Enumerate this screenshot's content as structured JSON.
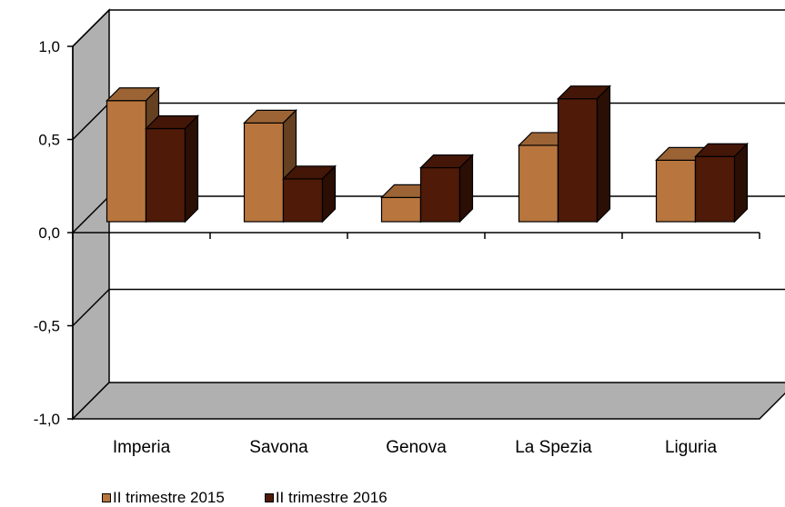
{
  "chart_data": {
    "type": "bar",
    "title": "",
    "xlabel": "",
    "ylabel": "",
    "categories": [
      "Imperia",
      "Savona",
      "Genova",
      "La Spezia",
      "Liguria"
    ],
    "series": [
      {
        "name": "II trimestre 2015",
        "values": [
          0.65,
          0.53,
          0.13,
          0.41,
          0.33
        ]
      },
      {
        "name": "II trimestre 2016",
        "values": [
          0.5,
          0.23,
          0.29,
          0.66,
          0.35
        ]
      }
    ],
    "ylim": [
      -1.0,
      1.0
    ],
    "yticks": [
      "1,0",
      "0,5",
      "0,0",
      "-0,5",
      "-1,0"
    ],
    "grid": true,
    "legend_position": "bottom-left",
    "colors": {
      "series_0": "#B8763E",
      "series_1": "#4F1A08",
      "wall": "#B0B0B0"
    }
  },
  "legend": {
    "items": [
      {
        "label": "II trimestre 2015",
        "color": "#B8763E"
      },
      {
        "label": "II trimestre 2016",
        "color": "#4F1A08"
      }
    ]
  }
}
